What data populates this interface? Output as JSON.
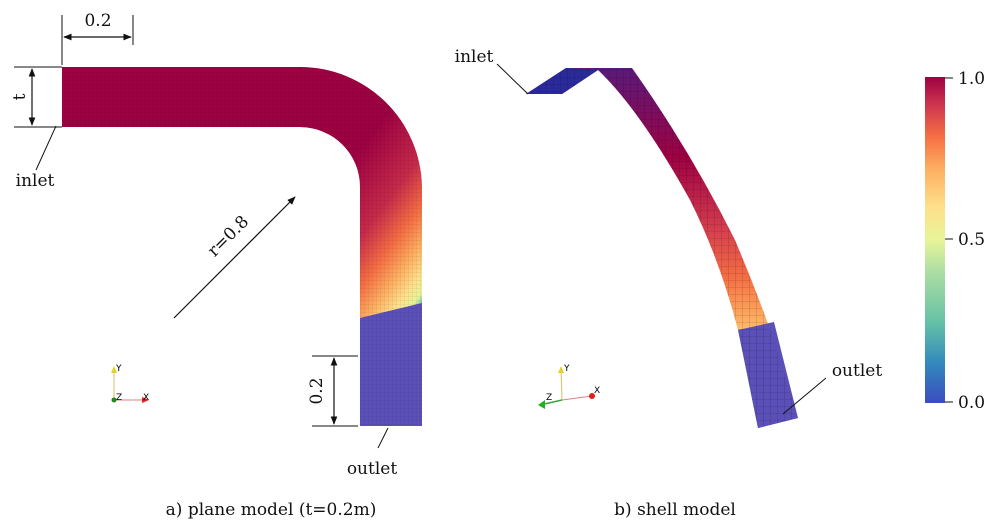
{
  "panel_a": {
    "caption": "a) plane model (t=0.2m)",
    "dim_width": "0.2",
    "dim_thickness": "t",
    "dim_radius": "r=0.8",
    "dim_outlet_length": "0.2",
    "inlet_label": "inlet",
    "outlet_label": "outlet"
  },
  "panel_b": {
    "caption": "b) shell model",
    "inlet_label": "inlet",
    "outlet_label": "outlet"
  },
  "axes_triad": {
    "y": "Y",
    "z": "Z",
    "x": "X"
  },
  "colorbar": {
    "ticks": [
      {
        "value": 1.0,
        "label": "1.0"
      },
      {
        "value": 0.5,
        "label": "0.5"
      },
      {
        "value": 0.0,
        "label": "0.0"
      }
    ],
    "colors": [
      "#3b4cc0",
      "#3288bd",
      "#66c2a5",
      "#abdda4",
      "#e6f598",
      "#fee08b",
      "#fdae61",
      "#f46d43",
      "#d53e4f",
      "#9e0142"
    ]
  }
}
